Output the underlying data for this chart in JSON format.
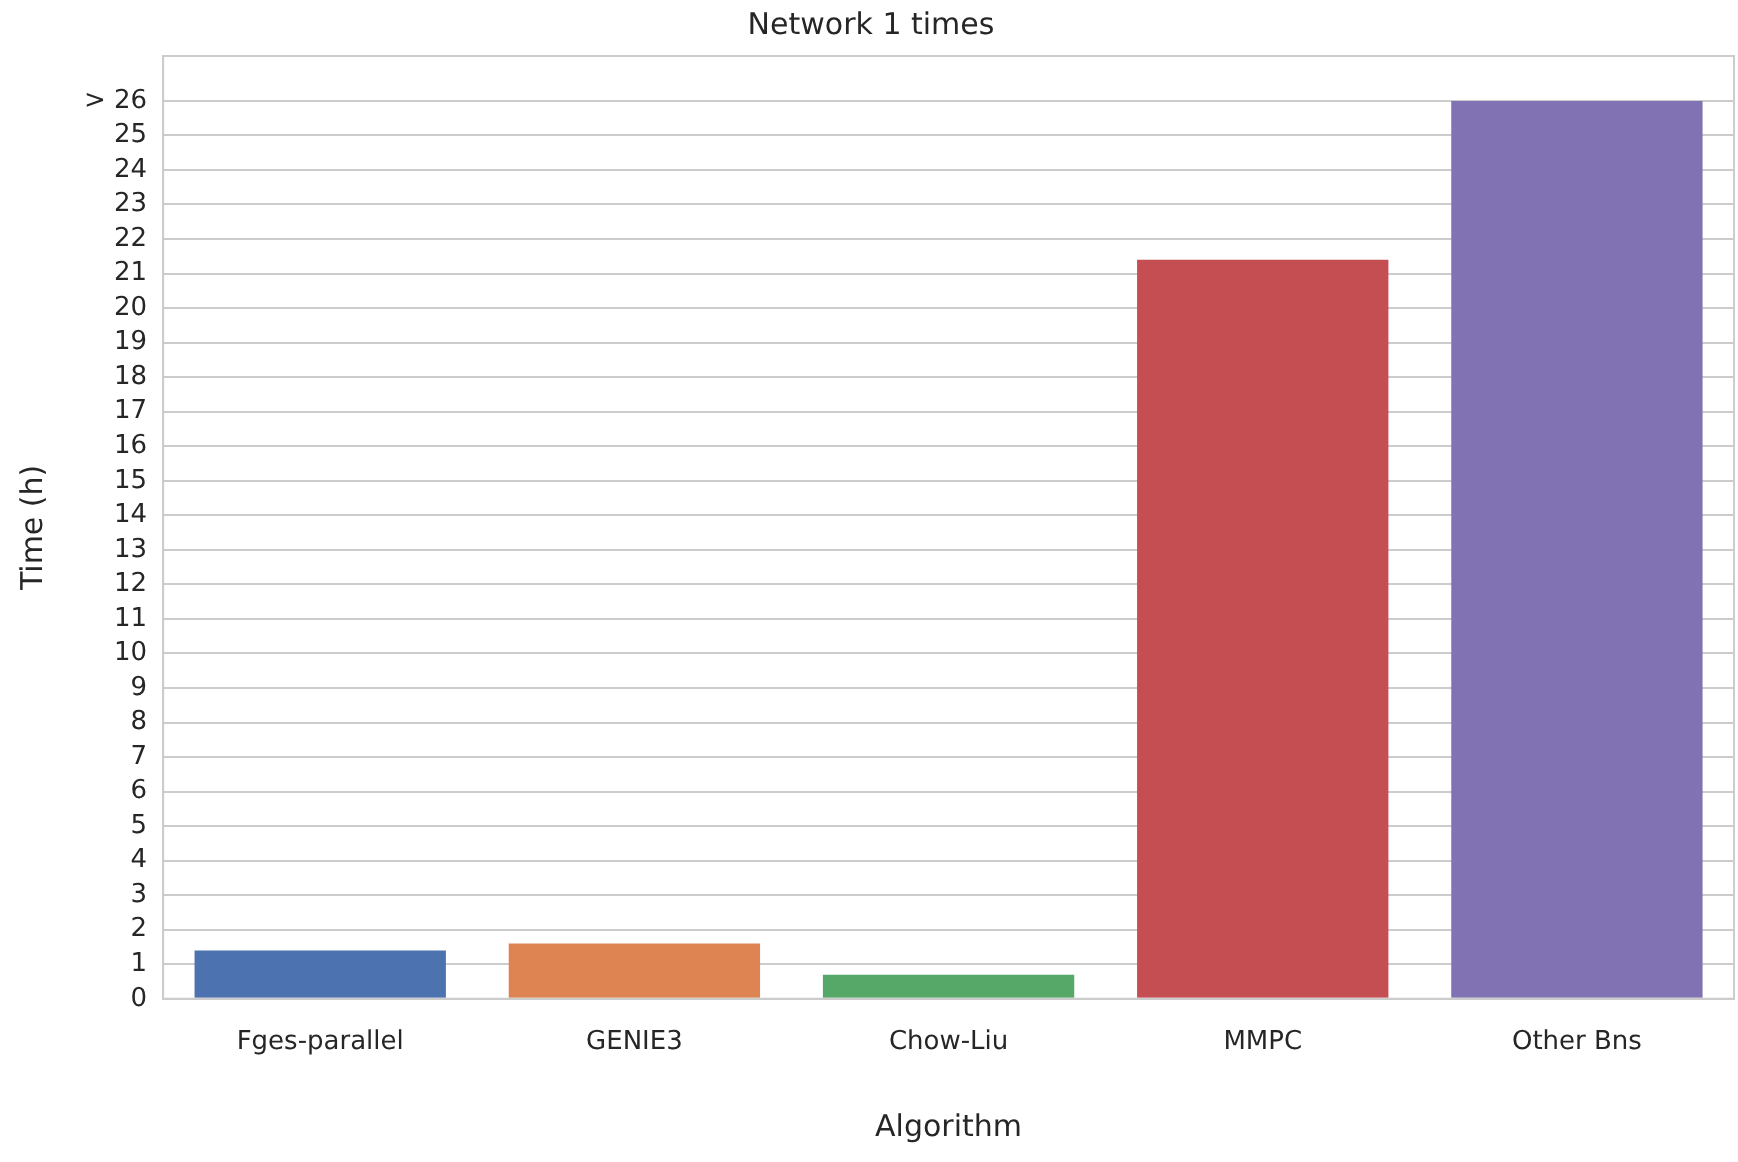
{
  "chart_data": {
    "type": "bar",
    "title": "Network 1 times",
    "xlabel": "Algorithm",
    "ylabel": "Time (h)",
    "categories": [
      "Fges-parallel",
      "GENIE3",
      "Chow-Liu",
      "MMPC",
      "Other Bns"
    ],
    "values": [
      1.4,
      1.6,
      0.7,
      21.4,
      26
    ],
    "colors": [
      "#4c72b0",
      "#dd8452",
      "#55a868",
      "#c44e52",
      "#8172b3"
    ],
    "ylim": [
      0,
      27.3
    ],
    "yticks": [
      0,
      1,
      2,
      3,
      4,
      5,
      6,
      7,
      8,
      9,
      10,
      11,
      12,
      13,
      14,
      15,
      16,
      17,
      18,
      19,
      20,
      21,
      22,
      23,
      24,
      25,
      {
        "value": 26,
        "label": "> 26"
      }
    ],
    "grid": "y",
    "legend": false
  }
}
